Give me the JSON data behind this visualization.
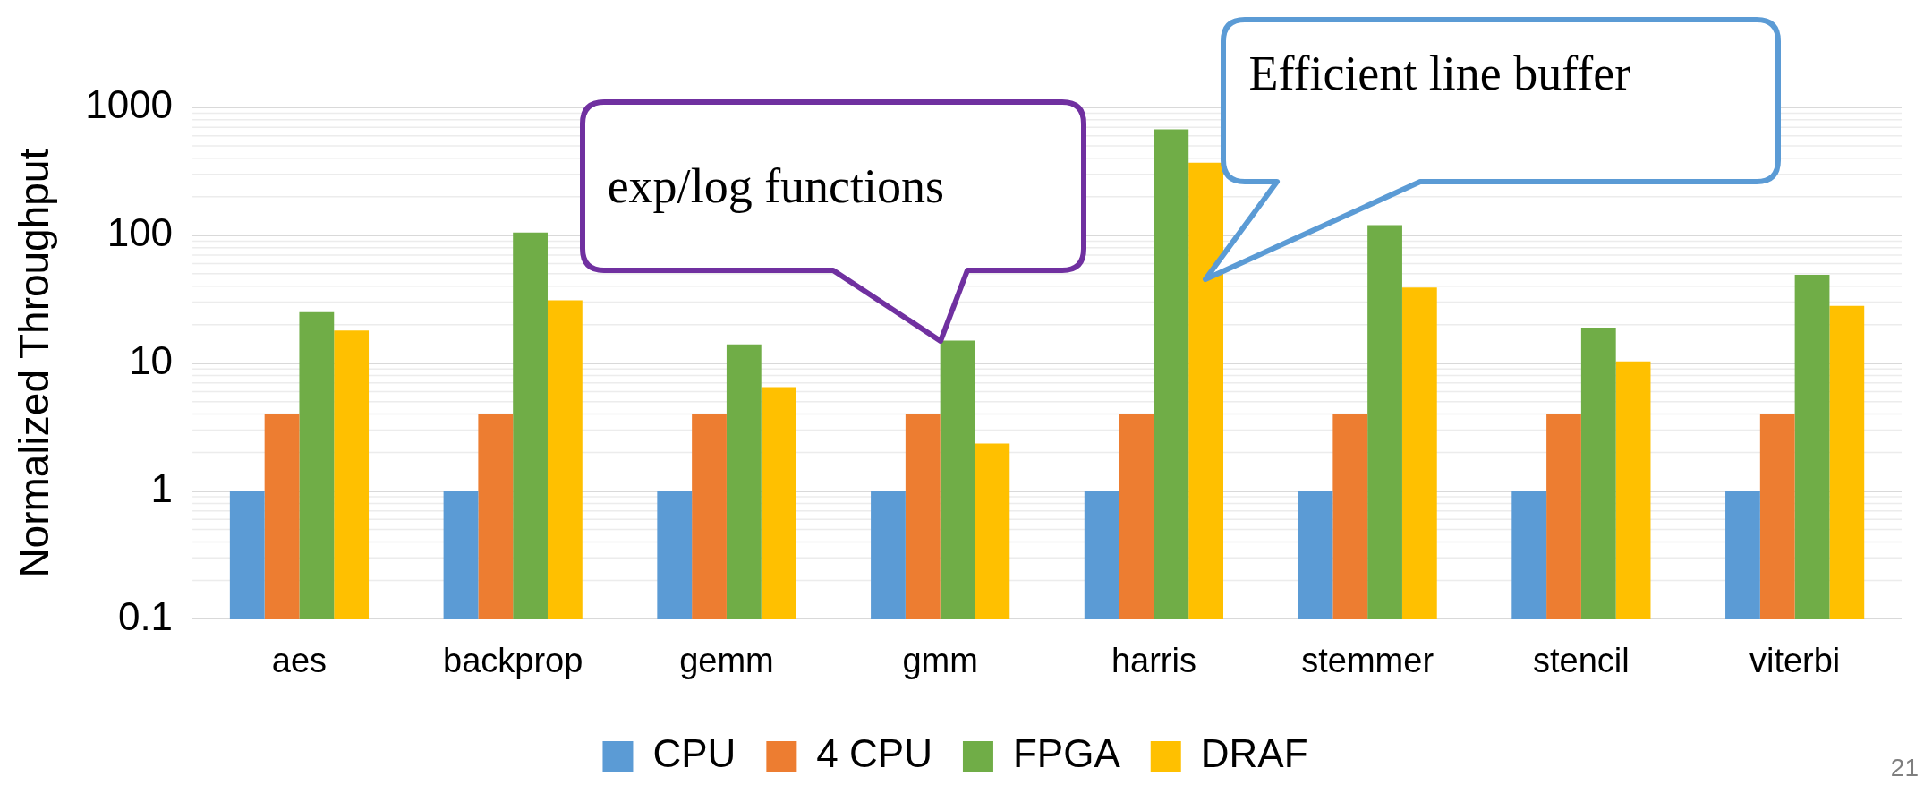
{
  "chart_data": {
    "type": "bar",
    "ylabel": "Normalized Throughput",
    "categories": [
      "aes",
      "backprop",
      "gemm",
      "gmm",
      "harris",
      "stemmer",
      "stencil",
      "viterbi"
    ],
    "series": [
      {
        "name": "CPU",
        "color": "#5b9bd5",
        "values": [
          1,
          1,
          1,
          1,
          1,
          1,
          1,
          1
        ]
      },
      {
        "name": "4 CPU",
        "color": "#ed7d31",
        "values": [
          4,
          4,
          4,
          4,
          4,
          4,
          4,
          4
        ]
      },
      {
        "name": "FPGA",
        "color": "#70ad47",
        "values": [
          25,
          105,
          14,
          15,
          675,
          120,
          19,
          49
        ]
      },
      {
        "name": "DRAF",
        "color": "#ffc000",
        "values": [
          18,
          31,
          6.5,
          2.35,
          370,
          39,
          10.3,
          28
        ]
      }
    ],
    "log": "y",
    "ylim": [
      0.1,
      1000
    ],
    "yticks": [
      0.1,
      1,
      10,
      100,
      1000
    ],
    "grid": "y",
    "legend": "bottom",
    "annotations": [
      {
        "text": "exp/log functions",
        "x": "gmm",
        "y": 15
      },
      {
        "text": "Efficient line buffer",
        "x": "harris",
        "y": 370
      },
      "21"
    ]
  }
}
